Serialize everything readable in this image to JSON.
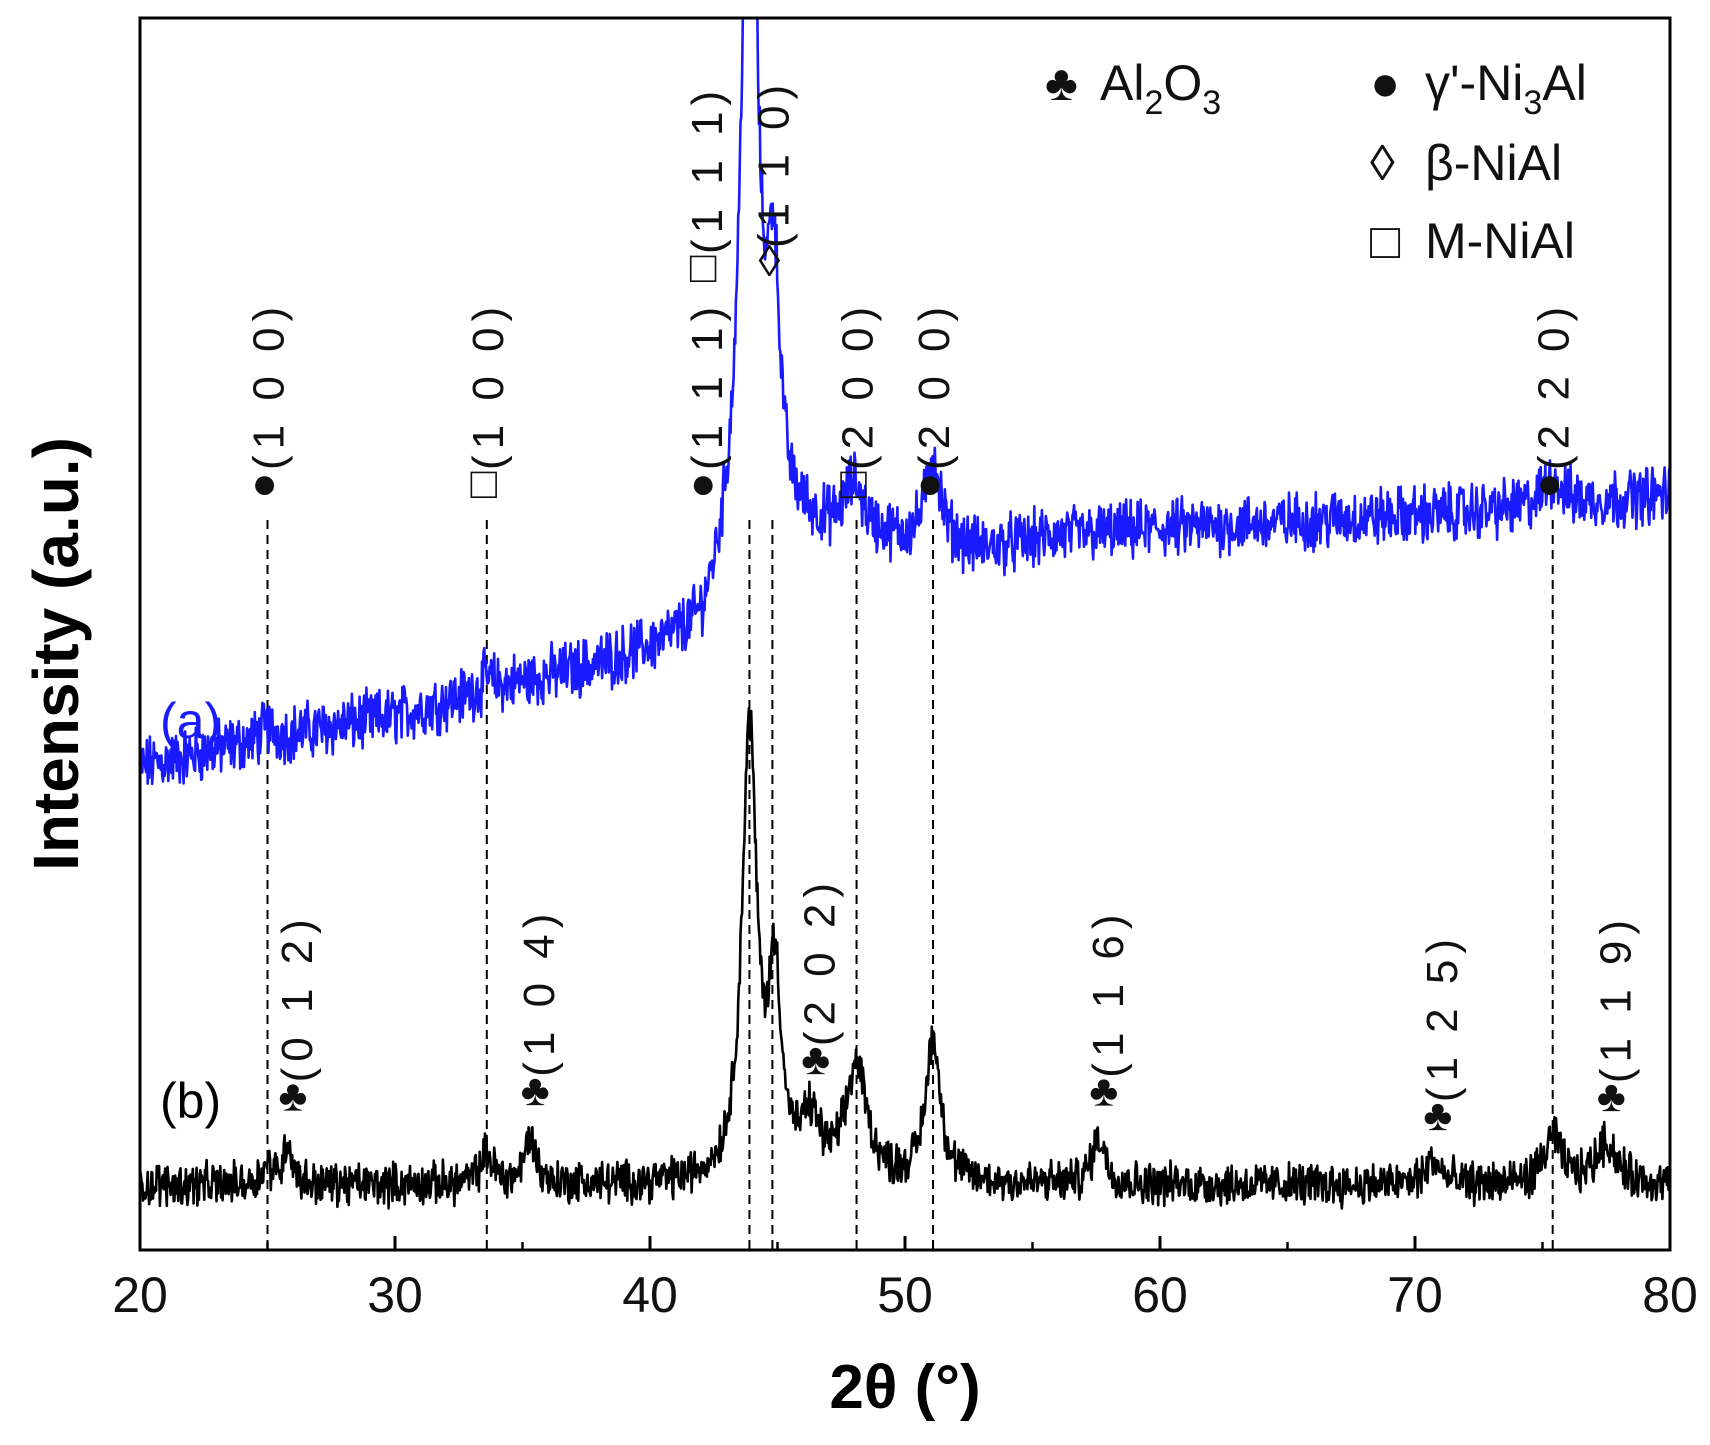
{
  "chart_data": {
    "type": "line",
    "title": "",
    "xlabel": "2θ (°)",
    "ylabel": "Intensity (a.u.)",
    "xlim": [
      20,
      80
    ],
    "xticks": [
      20,
      30,
      40,
      50,
      60,
      70,
      80
    ],
    "yticks": [],
    "grid": false,
    "colors": {
      "a": "#1a1aff",
      "b": "#000000",
      "axis": "#000000",
      "dash": "#000000"
    },
    "series": [
      {
        "name": "(a)",
        "color": "#1a1aff",
        "baseline": [
          [
            20,
            15
          ],
          [
            25,
            19
          ],
          [
            30,
            22
          ],
          [
            34,
            26
          ],
          [
            38,
            29
          ],
          [
            42,
            33
          ],
          [
            43,
            40
          ],
          [
            46,
            47
          ],
          [
            50,
            46
          ],
          [
            53,
            45
          ],
          [
            56,
            47
          ],
          [
            60,
            48
          ],
          [
            65,
            49
          ],
          [
            70,
            50
          ],
          [
            75,
            51
          ],
          [
            80,
            53
          ]
        ],
        "peaks": [
          [
            25,
            1.5,
            0.3
          ],
          [
            33.6,
            1.5,
            0.3
          ],
          [
            43.9,
            120,
            0.35
          ],
          [
            44.85,
            34,
            0.3
          ],
          [
            48.0,
            7,
            0.45
          ],
          [
            51.1,
            12,
            0.35
          ],
          [
            75.4,
            4,
            0.45
          ]
        ],
        "noise": 3.2
      },
      {
        "name": "(b)",
        "color": "#000000",
        "baseline": [
          [
            20,
            0
          ],
          [
            80,
            0
          ]
        ],
        "peaks": [
          [
            25.0,
            3,
            0.3
          ],
          [
            25.8,
            7,
            0.2
          ],
          [
            33.6,
            5,
            0.3
          ],
          [
            35.3,
            8,
            0.25
          ],
          [
            43.9,
            75,
            0.35
          ],
          [
            44.9,
            32,
            0.3
          ],
          [
            46.3,
            9,
            0.45
          ],
          [
            48.1,
            19,
            0.5
          ],
          [
            51.1,
            24,
            0.35
          ],
          [
            57.6,
            8,
            0.3
          ],
          [
            70.7,
            4,
            0.35
          ],
          [
            75.4,
            8,
            0.4
          ],
          [
            77.5,
            7,
            0.5
          ]
        ],
        "noise": 2.8
      }
    ],
    "series_labels": [
      {
        "text": "(a)",
        "color": "#1a1aff"
      },
      {
        "text": "(b)",
        "color": "#000000"
      }
    ],
    "reference_lines": [
      25.0,
      33.6,
      43.9,
      44.8,
      48.1,
      51.1,
      75.4
    ],
    "annotations": [
      {
        "x": 25.0,
        "marker": "●",
        "hkl": "(1 0 0)",
        "trace": "a"
      },
      {
        "x": 33.6,
        "marker": "□",
        "hkl": "(1 0 0)",
        "trace": "a"
      },
      {
        "x": 42.2,
        "marker": "●",
        "hkl": "(1 1 1)",
        "trace": "a"
      },
      {
        "x": 42.2,
        "marker": "□",
        "hkl": "(1 1 1)",
        "trace": "a-upper"
      },
      {
        "x": 44.8,
        "marker": "◊",
        "hkl": "(1 1 0)",
        "trace": "a-upper"
      },
      {
        "x": 48.1,
        "marker": "□",
        "hkl": "(2 0 0)",
        "trace": "a"
      },
      {
        "x": 51.1,
        "marker": "●",
        "hkl": "(2 0 0)",
        "trace": "a"
      },
      {
        "x": 75.4,
        "marker": "●",
        "hkl": "(2 2 0)",
        "trace": "a"
      },
      {
        "x": 25.8,
        "marker": "♣",
        "hkl": "(0 1 2)",
        "trace": "b"
      },
      {
        "x": 35.3,
        "marker": "♣",
        "hkl": "(1 0 4)",
        "trace": "b"
      },
      {
        "x": 46.3,
        "marker": "♣",
        "hkl": "(2 0 2)",
        "trace": "b"
      },
      {
        "x": 57.6,
        "marker": "♣",
        "hkl": "(1 1 6)",
        "trace": "b"
      },
      {
        "x": 70.7,
        "marker": "♣",
        "hkl": "(1 2 5)",
        "trace": "b"
      },
      {
        "x": 77.5,
        "marker": "♣",
        "hkl": "(1 1 9)",
        "trace": "b"
      }
    ],
    "legend": {
      "placement": "top-right",
      "entries": [
        {
          "symbol": "♣",
          "text": "Al",
          "sub1": "2",
          "text2": "O",
          "sub2": "3"
        },
        {
          "symbol": "●",
          "text": "γ'-Ni",
          "sub1": "3",
          "text2": "Al",
          "sub2": ""
        },
        {
          "symbol": "◊",
          "text": "β-NiAl",
          "sub1": "",
          "text2": "",
          "sub2": ""
        },
        {
          "symbol": "□",
          "text": "M-NiAl",
          "sub1": "",
          "text2": "",
          "sub2": ""
        }
      ]
    }
  }
}
